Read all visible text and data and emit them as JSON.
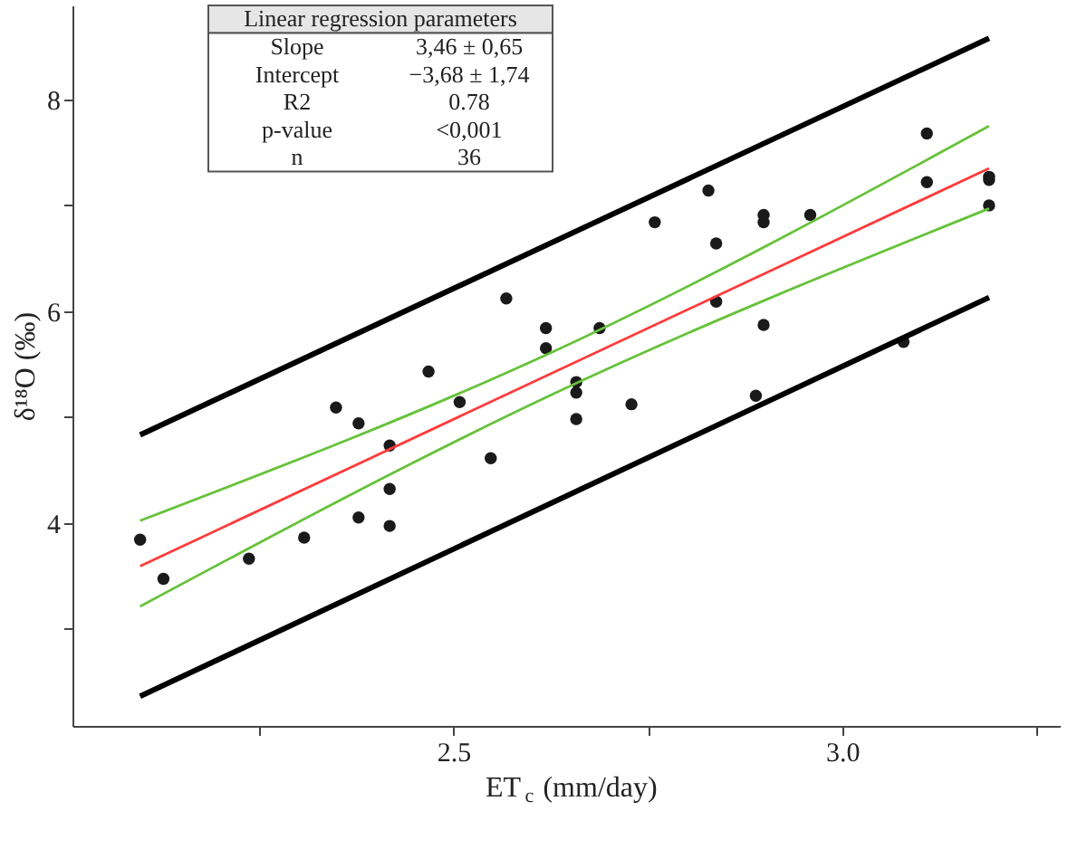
{
  "chart_data": {
    "type": "scatter",
    "xlabel": "ET$_{c}$ (mm/day)",
    "ylabel": "δ¹⁸O (‰)",
    "marker": "circle",
    "grid": false,
    "xlim": [
      2.01,
      3.28
    ],
    "ylim": [
      2.08,
      8.89
    ],
    "xticks": [
      {
        "value": 2.25,
        "label": null
      },
      2.5,
      {
        "value": 2.75,
        "label": null
      },
      {
        "value": 3.0,
        "label": "3.0"
      },
      {
        "value": 3.25,
        "label": null
      }
    ],
    "yticks": [
      {
        "value": 3,
        "label": null
      },
      4,
      {
        "value": 5,
        "label": null
      },
      6,
      {
        "value": 7,
        "label": null
      },
      8
    ],
    "annotations": [
      "Linear regression parameters",
      "Slope",
      "3,46 ± 0,65",
      "Intercept",
      "−3,68 ± 1,74",
      "R2",
      "0.78",
      "p-value",
      "<0,001",
      "n",
      "36"
    ],
    "series": [
      {
        "color": "#1a1a1a",
        "x": [
          2.097,
          2.127,
          2.237,
          2.308,
          2.349,
          2.378,
          2.378,
          2.418,
          2.418,
          2.418,
          2.468,
          2.508,
          2.548,
          2.568,
          2.619,
          2.619,
          2.658,
          2.658,
          2.658,
          2.688,
          2.729,
          2.759,
          2.828,
          2.838,
          2.838,
          2.889,
          2.899,
          2.899,
          2.899,
          2.959,
          3.079,
          3.109,
          3.109,
          3.189,
          3.189,
          3.189
        ],
        "values": [
          3.84,
          3.47,
          3.66,
          3.86,
          5.09,
          4.94,
          4.05,
          4.73,
          4.32,
          3.97,
          5.43,
          5.14,
          4.61,
          6.12,
          5.84,
          5.65,
          5.33,
          5.23,
          4.98,
          5.84,
          5.12,
          6.84,
          7.14,
          6.64,
          6.09,
          5.2,
          6.91,
          6.84,
          5.87,
          6.91,
          5.71,
          7.68,
          7.22,
          7.27,
          7.24,
          7.0
        ]
      },
      {
        "type": "line",
        "marker": "none",
        "color": "#000000",
        "x": [
          2.097,
          3.189
        ],
        "values": [
          4.83,
          8.58
        ]
      },
      {
        "type": "line",
        "marker": "none",
        "color": "#000000",
        "x": [
          2.097,
          3.189
        ],
        "values": [
          2.36,
          6.13
        ]
      },
      {
        "type": "line",
        "marker": "none",
        "color": "#ff3b3b",
        "x": [
          2.097,
          3.189
        ],
        "values": [
          3.59,
          7.35
        ]
      },
      {
        "type": "line",
        "marker": "none",
        "color": "#66c23a",
        "x": [
          2.097,
          2.629,
          3.189
        ],
        "values": [
          4.02,
          5.62,
          7.75
        ]
      },
      {
        "type": "line",
        "marker": "none",
        "color": "#66c23a",
        "x": [
          2.097,
          2.629,
          3.189
        ],
        "values": [
          3.21,
          5.22,
          6.97
        ]
      }
    ]
  }
}
